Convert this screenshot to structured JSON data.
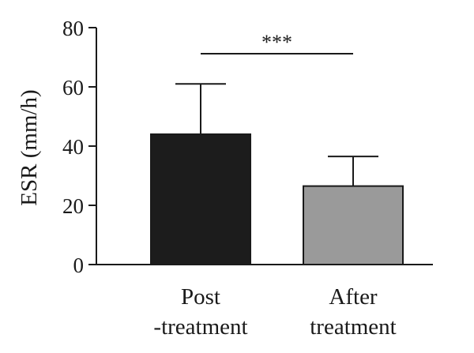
{
  "chart_data": {
    "type": "bar",
    "categories": [
      {
        "line1": "Post",
        "line2": "-treatment"
      },
      {
        "line1": "After",
        "line2": "treatment"
      }
    ],
    "values": [
      44,
      26.5
    ],
    "error_upper": [
      61,
      36.5
    ],
    "bar_colors": [
      "#1c1c1c",
      "#9a9a9a"
    ],
    "ylabel": "ESR (mm/h)",
    "ylim": [
      0,
      80
    ],
    "yticks": [
      "0",
      "20",
      "40",
      "60",
      "80"
    ],
    "significance": {
      "label": "***",
      "between": [
        0,
        1
      ]
    },
    "grid": false
  }
}
